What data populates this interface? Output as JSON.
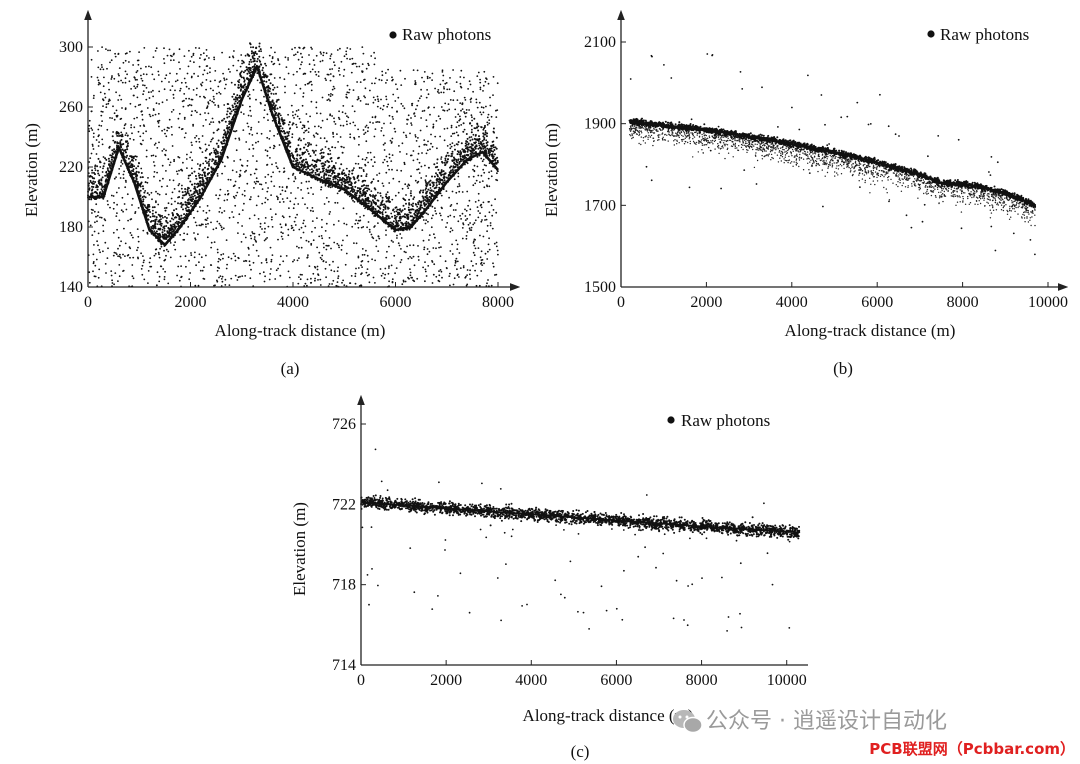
{
  "chart_data": [
    {
      "type": "scatter",
      "panel_label": "(a)",
      "legend": "Raw photons",
      "xlabel": "Along-track distance (m)",
      "ylabel": "Elevation (m)",
      "xlim": [
        0,
        8000
      ],
      "ylim": [
        140,
        300
      ],
      "xticks": [
        0,
        2000,
        4000,
        6000,
        8000
      ],
      "yticks": [
        140,
        180,
        220,
        260,
        300
      ],
      "xtick_labels": [
        "0",
        "2000",
        "4000",
        "6000",
        "8000"
      ],
      "ytick_labels": [
        "140",
        "180",
        "220",
        "260",
        "300"
      ],
      "surface_profile": {
        "x": [
          0,
          300,
          600,
          900,
          1200,
          1500,
          1800,
          2200,
          2600,
          3000,
          3300,
          3600,
          4000,
          4500,
          5000,
          5500,
          6000,
          6300,
          6600,
          7000,
          7400,
          7700,
          8000
        ],
        "y": [
          200,
          200,
          233,
          210,
          178,
          168,
          180,
          200,
          225,
          265,
          287,
          255,
          220,
          212,
          205,
          192,
          178,
          180,
          192,
          210,
          225,
          230,
          218
        ]
      },
      "noise_top": {
        "x": [
          0,
          5600,
          5700,
          8000
        ],
        "y": [
          300,
          300,
          285,
          285
        ]
      },
      "noise_density": "high"
    },
    {
      "type": "scatter",
      "panel_label": "(b)",
      "legend": "Raw photons",
      "xlabel": "Along-track distance (m)",
      "ylabel": "Elevation (m)",
      "xlim": [
        0,
        10000
      ],
      "ylim": [
        1500,
        2100
      ],
      "xticks": [
        0,
        2000,
        4000,
        6000,
        8000,
        10000
      ],
      "yticks": [
        1500,
        1700,
        1900,
        2100
      ],
      "xtick_labels": [
        "0",
        "2000",
        "4000",
        "6000",
        "8000",
        "10000"
      ],
      "ytick_labels": [
        "1500",
        "1700",
        "1900",
        "2100"
      ],
      "surface_profile": {
        "x": [
          200,
          2000,
          3500,
          5000,
          6000,
          7000,
          7500,
          8200,
          9000,
          9700
        ],
        "y": [
          1905,
          1885,
          1860,
          1830,
          1805,
          1775,
          1755,
          1750,
          1730,
          1700
        ]
      },
      "noise_top": {
        "x": [
          200,
          9700
        ],
        "y": [
          2100,
          2100
        ]
      },
      "noise_density": "low"
    },
    {
      "type": "scatter",
      "panel_label": "(c)",
      "legend": "Raw photons",
      "xlabel": "Along-track distance (m)",
      "ylabel": "Elevation (m)",
      "xlim": [
        0,
        10500
      ],
      "ylim": [
        714,
        726
      ],
      "xticks": [
        0,
        2000,
        4000,
        6000,
        8000,
        10000
      ],
      "yticks": [
        714,
        718,
        722,
        726
      ],
      "xtick_labels": [
        "0",
        "2000",
        "4000",
        "6000",
        "8000",
        "10000"
      ],
      "ytick_labels": [
        "714",
        "718",
        "722",
        "726"
      ],
      "surface_profile": {
        "x": [
          0,
          2000,
          4000,
          6000,
          8000,
          10300
        ],
        "y": [
          722.1,
          721.8,
          721.5,
          721.2,
          720.9,
          720.6
        ]
      },
      "noise_top": {
        "x": [
          0,
          10300
        ],
        "y": [
          725,
          725
        ]
      },
      "noise_density": "very-low"
    }
  ],
  "watermark": {
    "text": "公众号 · 逍遥设计自动化",
    "source": "PCB联盟网（Pcbbar.com）",
    "icon": "wechat-icon"
  }
}
